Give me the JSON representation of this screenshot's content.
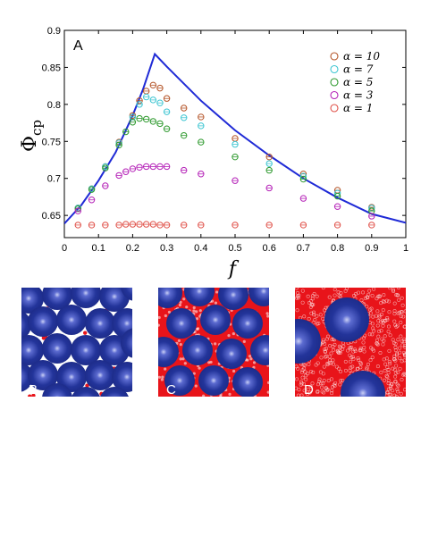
{
  "chart_data": {
    "type": "scatter",
    "panel_label": "A",
    "xlabel": "f",
    "ylabel": "Φ",
    "ylabel_sub": "cp",
    "xlim": [
      0,
      1
    ],
    "ylim": [
      0.62,
      0.9
    ],
    "x_ticks": [
      "0",
      "0.1",
      "0.2",
      "0.3",
      "0.4",
      "0.5",
      "0.6",
      "0.7",
      "0.8",
      "0.9",
      "1"
    ],
    "y_ticks": [
      "0.65",
      "0.7",
      "0.75",
      "0.8",
      "0.85",
      "0.9"
    ],
    "legend_position": "top-right",
    "curve": {
      "color": "#1f2ad6",
      "x": [
        0,
        0.05,
        0.1,
        0.15,
        0.2,
        0.23,
        0.265,
        0.3,
        0.4,
        0.5,
        0.6,
        0.7,
        0.8,
        0.9,
        1.0
      ],
      "y": [
        0.639,
        0.664,
        0.697,
        0.735,
        0.785,
        0.82,
        0.868,
        0.851,
        0.805,
        0.765,
        0.731,
        0.7,
        0.674,
        0.652,
        0.64
      ]
    },
    "series": [
      {
        "name": "α = 10",
        "color": "#b5562a",
        "x": [
          0.04,
          0.08,
          0.12,
          0.16,
          0.2,
          0.22,
          0.24,
          0.26,
          0.28,
          0.3,
          0.35,
          0.4,
          0.5,
          0.6,
          0.7,
          0.8,
          0.9
        ],
        "y": [
          0.66,
          0.686,
          0.716,
          0.749,
          0.785,
          0.805,
          0.818,
          0.826,
          0.822,
          0.808,
          0.795,
          0.783,
          0.754,
          0.729,
          0.706,
          0.684,
          0.661
        ]
      },
      {
        "name": "α = 7",
        "color": "#3fc6d2",
        "x": [
          0.04,
          0.08,
          0.12,
          0.16,
          0.2,
          0.22,
          0.24,
          0.26,
          0.28,
          0.3,
          0.35,
          0.4,
          0.5,
          0.6,
          0.7,
          0.8,
          0.9
        ],
        "y": [
          0.66,
          0.686,
          0.716,
          0.748,
          0.783,
          0.8,
          0.81,
          0.806,
          0.802,
          0.79,
          0.782,
          0.771,
          0.746,
          0.72,
          0.703,
          0.68,
          0.66
        ]
      },
      {
        "name": "α = 5",
        "color": "#2f9a2f",
        "x": [
          0.04,
          0.08,
          0.12,
          0.16,
          0.18,
          0.2,
          0.22,
          0.24,
          0.26,
          0.28,
          0.3,
          0.35,
          0.4,
          0.5,
          0.6,
          0.7,
          0.8,
          0.9
        ],
        "y": [
          0.659,
          0.685,
          0.714,
          0.745,
          0.763,
          0.776,
          0.781,
          0.78,
          0.777,
          0.774,
          0.767,
          0.758,
          0.749,
          0.729,
          0.711,
          0.699,
          0.676,
          0.656
        ]
      },
      {
        "name": "α = 3",
        "color": "#b523b8",
        "x": [
          0.04,
          0.08,
          0.12,
          0.16,
          0.18,
          0.2,
          0.22,
          0.24,
          0.26,
          0.28,
          0.3,
          0.35,
          0.4,
          0.5,
          0.6,
          0.7,
          0.8,
          0.9
        ],
        "y": [
          0.656,
          0.671,
          0.69,
          0.704,
          0.709,
          0.713,
          0.715,
          0.716,
          0.716,
          0.716,
          0.716,
          0.711,
          0.706,
          0.697,
          0.687,
          0.673,
          0.662,
          0.649
        ]
      },
      {
        "name": "α = 1",
        "color": "#e0524a",
        "x": [
          0.04,
          0.08,
          0.12,
          0.16,
          0.18,
          0.2,
          0.22,
          0.24,
          0.26,
          0.28,
          0.3,
          0.35,
          0.4,
          0.5,
          0.6,
          0.7,
          0.8,
          0.9
        ],
        "y": [
          0.637,
          0.637,
          0.637,
          0.637,
          0.638,
          0.638,
          0.638,
          0.638,
          0.638,
          0.637,
          0.637,
          0.637,
          0.637,
          0.637,
          0.637,
          0.637,
          0.637,
          0.637
        ]
      }
    ]
  },
  "insets": [
    {
      "label": "B",
      "big_color": "#1f2f8f",
      "small_color": "#e8141a"
    },
    {
      "label": "C",
      "big_color": "#1f2f8f",
      "small_color": "#e8141a"
    },
    {
      "label": "D",
      "big_color": "#1f2f8f",
      "small_color": "#e8141a"
    }
  ]
}
